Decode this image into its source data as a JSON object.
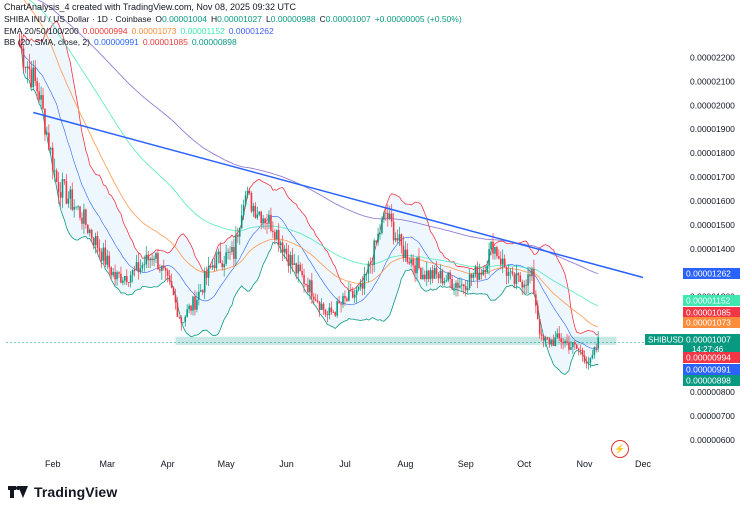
{
  "attribution": "ChartAnalysis_4 created with TradingView.com, Nov 08, 2025 09:32 UTC",
  "legend": {
    "symbol": "SHIBA INU / US Dollar · 1D · Coinbase",
    "ohlc": [
      {
        "k": "O",
        "v": "0.00001004"
      },
      {
        "k": "H",
        "v": "0.00001027"
      },
      {
        "k": "L",
        "v": "0.00000988"
      },
      {
        "k": "C",
        "v": "0.00001007"
      }
    ],
    "change": "+0.00000005 (+0.50%)",
    "ema_label": "EMA 20/50/100/200",
    "ema_values": [
      {
        "v": "0.00000994",
        "color": "#e83a3a"
      },
      {
        "v": "0.00001073",
        "color": "#ff8c3a"
      },
      {
        "v": "0.00001152",
        "color": "#3ee8b0"
      },
      {
        "v": "0.00001262",
        "color": "#3a5cff"
      }
    ],
    "bb_label": "BB (20, SMA, close, 2)",
    "bb_values": [
      {
        "v": "0.00000991",
        "color": "#2a62ff"
      },
      {
        "v": "0.00001085",
        "color": "#e83a3a"
      },
      {
        "v": "0.00000898",
        "color": "#089981"
      }
    ]
  },
  "colors": {
    "up": "#089981",
    "down": "#f23645",
    "trendline": "#2a62ff",
    "support_zone": "#26a69a",
    "bb_fill": "#e3f2fd"
  },
  "chart_data": {
    "type": "candlestick",
    "x_tick_labels": [
      "Feb",
      "Mar",
      "Apr",
      "May",
      "Jun",
      "Jul",
      "Aug",
      "Sep",
      "Oct",
      "Nov",
      "Dec"
    ],
    "y_tick_labels": [
      "0.00002200",
      "0.00002100",
      "0.00002000",
      "0.00001900",
      "0.00001800",
      "0.00001700",
      "0.00001600",
      "0.00001500",
      "0.00001400",
      "0.00001300",
      "0.00001200",
      "0.00000800",
      "0.00000700",
      "0.00000600"
    ],
    "ylim": [
      5.5e-06,
      2.29e-05
    ],
    "approx_close_series": [
      [
        "2025-01-15",
        2.25e-05
      ],
      [
        "2025-01-25",
        2.05e-05
      ],
      [
        "2025-02-03",
        1.68e-05
      ],
      [
        "2025-02-15",
        1.55e-05
      ],
      [
        "2025-02-25",
        1.4e-05
      ],
      [
        "2025-03-05",
        1.28e-05
      ],
      [
        "2025-03-15",
        1.3e-05
      ],
      [
        "2025-03-25",
        1.38e-05
      ],
      [
        "2025-04-03",
        1.22e-05
      ],
      [
        "2025-04-08",
        1.1e-05
      ],
      [
        "2025-04-15",
        1.18e-05
      ],
      [
        "2025-04-25",
        1.35e-05
      ],
      [
        "2025-05-05",
        1.38e-05
      ],
      [
        "2025-05-10",
        1.63e-05
      ],
      [
        "2025-05-15",
        1.58e-05
      ],
      [
        "2025-05-25",
        1.5e-05
      ],
      [
        "2025-06-05",
        1.32e-05
      ],
      [
        "2025-06-15",
        1.22e-05
      ],
      [
        "2025-06-22",
        1.12e-05
      ],
      [
        "2025-07-01",
        1.18e-05
      ],
      [
        "2025-07-10",
        1.23e-05
      ],
      [
        "2025-07-18",
        1.45e-05
      ],
      [
        "2025-07-22",
        1.55e-05
      ],
      [
        "2025-07-30",
        1.4e-05
      ],
      [
        "2025-08-10",
        1.3e-05
      ],
      [
        "2025-08-20",
        1.28e-05
      ],
      [
        "2025-08-30",
        1.25e-05
      ],
      [
        "2025-09-10",
        1.32e-05
      ],
      [
        "2025-09-15",
        1.42e-05
      ],
      [
        "2025-09-25",
        1.26e-05
      ],
      [
        "2025-10-05",
        1.28e-05
      ],
      [
        "2025-10-10",
        1.01e-05
      ],
      [
        "2025-10-20",
        1.02e-05
      ],
      [
        "2025-10-30",
        9.7e-06
      ],
      [
        "2025-11-04",
        9.2e-06
      ],
      [
        "2025-11-08",
        1.007e-05
      ]
    ],
    "descending_trendline": [
      [
        "2025-01-22",
        1.97e-05
      ],
      [
        "2025-12-01",
        1.28e-05
      ]
    ],
    "support_zone": [
      1e-05,
      1.03e-05
    ],
    "price_labels": [
      {
        "label": "0.00001262",
        "value": 1.262e-05,
        "color": "#2a62ff"
      },
      {
        "label": "0.00001152",
        "value": 1.152e-05,
        "color": "#3ee8b0"
      },
      {
        "label": "0.00001085",
        "value": 1.085e-05,
        "color": "#f23645"
      },
      {
        "label": "0.00001073",
        "value": 1.073e-05,
        "color": "#ff8c3a"
      },
      {
        "label": "0.00001007",
        "value": 1.007e-05,
        "color": "#089981",
        "sub": "14:27:46",
        "tag": "SHIBUSD"
      },
      {
        "label": "0.00000994",
        "value": 9.94e-06,
        "color": "#f23645"
      },
      {
        "label": "0.00000991",
        "value": 9.91e-06,
        "color": "#2a62ff"
      },
      {
        "label": "0.00000898",
        "value": 8.98e-06,
        "color": "#089981"
      }
    ]
  },
  "footer": {
    "logo_text": "TradingView",
    "flash_icon": "flash-icon"
  }
}
